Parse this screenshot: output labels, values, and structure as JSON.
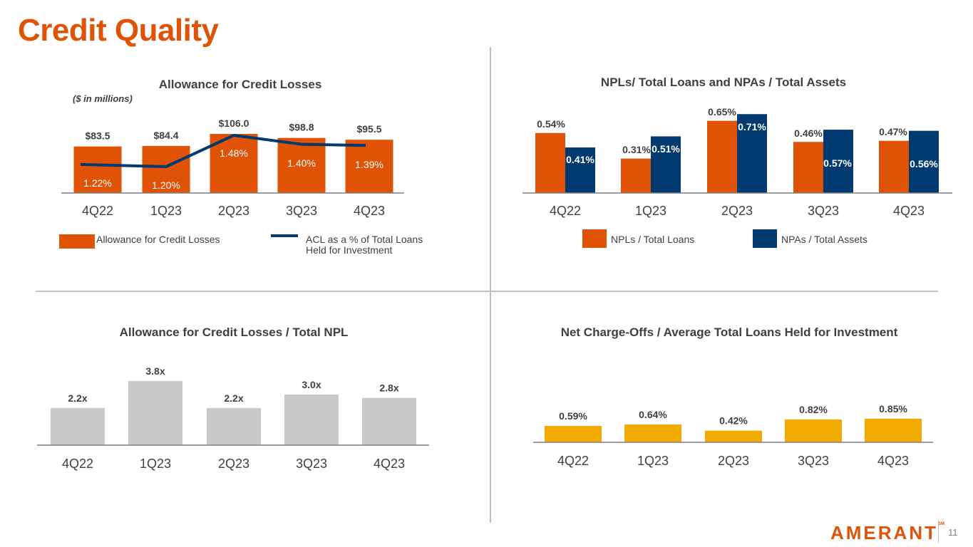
{
  "page": {
    "title": "Credit Quality",
    "page_number": "11",
    "logo": "AMERANT",
    "logo_mark": "SM"
  },
  "colors": {
    "orange": "#e05206",
    "navy": "#003a70",
    "gray": "#c8c8c8",
    "gold": "#f2a900",
    "axis": "#7f7f7f",
    "text": "#404040"
  },
  "chart_data": [
    {
      "id": "acl",
      "type": "bar",
      "title": "Allowance for Credit Losses",
      "subtitle": "($ in millions)",
      "categories": [
        "4Q22",
        "1Q23",
        "2Q23",
        "3Q23",
        "4Q23"
      ],
      "series": [
        {
          "name": "Allowance for Credit Losses",
          "type": "bar",
          "values": [
            83.5,
            84.4,
            106.0,
            98.8,
            95.5
          ],
          "labels": [
            "$83.5",
            "$84.4",
            "$106.0",
            "$98.8",
            "$95.5"
          ]
        },
        {
          "name": "ACL as a % of Total Loans Held for Investment",
          "type": "line",
          "values": [
            1.22,
            1.2,
            1.48,
            1.4,
            1.39
          ],
          "labels": [
            "1.22%",
            "1.20%",
            "1.48%",
            "1.40%",
            "1.39%"
          ]
        }
      ],
      "legend": {
        "bar_line1": "Allowance for Credit Losses",
        "line_line1": "ACL as a % of Total Loans",
        "line_line2": "Held for Investment"
      }
    },
    {
      "id": "npl",
      "type": "bar",
      "title": "NPLs/ Total Loans and NPAs / Total Assets",
      "categories": [
        "4Q22",
        "1Q23",
        "2Q23",
        "3Q23",
        "4Q23"
      ],
      "series": [
        {
          "name": "NPLs / Total Loans",
          "values": [
            0.54,
            0.31,
            0.65,
            0.46,
            0.47
          ],
          "labels": [
            "0.54%",
            "0.31%",
            "0.65%",
            "0.46%",
            "0.47%"
          ]
        },
        {
          "name": "NPAs / Total Assets",
          "values": [
            0.41,
            0.51,
            0.71,
            0.57,
            0.56
          ],
          "labels": [
            "0.41%",
            "0.51%",
            "0.71%",
            "0.57%",
            "0.56%"
          ]
        }
      ]
    },
    {
      "id": "coverage",
      "type": "bar",
      "title": "Allowance for Credit Losses / Total NPL",
      "categories": [
        "4Q22",
        "1Q23",
        "2Q23",
        "3Q23",
        "4Q23"
      ],
      "values": [
        2.2,
        3.8,
        2.2,
        3.0,
        2.8
      ],
      "labels": [
        "2.2x",
        "3.8x",
        "2.2x",
        "3.0x",
        "2.8x"
      ]
    },
    {
      "id": "nco",
      "type": "bar",
      "title": "Net Charge-Offs / Average Total Loans Held for Investment",
      "categories": [
        "4Q22",
        "1Q23",
        "2Q23",
        "3Q23",
        "4Q23"
      ],
      "values": [
        0.59,
        0.64,
        0.42,
        0.82,
        0.85
      ],
      "labels": [
        "0.59%",
        "0.64%",
        "0.42%",
        "0.82%",
        "0.85%"
      ]
    }
  ]
}
